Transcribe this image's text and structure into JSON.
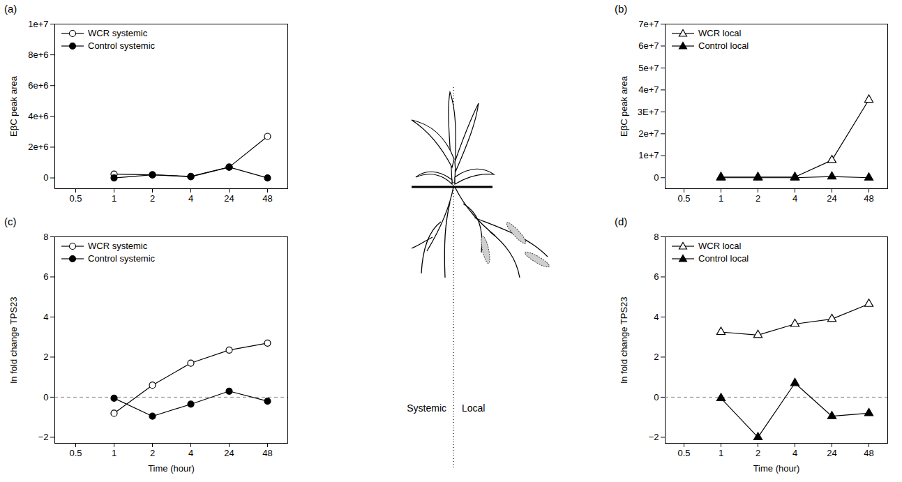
{
  "chart_data": [
    {
      "type": "line",
      "panel_label": "(a)",
      "y_label": "EβC peak area",
      "categories": [
        "0.5",
        "1",
        "2",
        "4",
        "24",
        "48"
      ],
      "ylim": [
        -700000,
        10000000
      ],
      "yticks": [
        0,
        {
          "value": 2000000,
          "label": "2e+6"
        },
        {
          "value": 4000000,
          "label": "4e+6"
        },
        {
          "value": 6000000,
          "label": "6e+6"
        },
        {
          "value": 8000000,
          "label": "8e+6"
        },
        {
          "value": 10000000,
          "label": "1e+7"
        }
      ],
      "legend": "top-left",
      "series": [
        {
          "name": "WCR systemic",
          "color": "#000000",
          "marker": "open-circle",
          "values": [
            null,
            250000,
            200000,
            80000,
            700000,
            2700000
          ]
        },
        {
          "name": "Control systemic",
          "color": "#000000",
          "marker": "filled-circle",
          "values": [
            null,
            0,
            200000,
            100000,
            700000,
            0
          ]
        }
      ]
    },
    {
      "type": "line",
      "panel_label": "(b)",
      "y_label": "EβC peak area",
      "categories": [
        "0.5",
        "1",
        "2",
        "4",
        "24",
        "48"
      ],
      "ylim": [
        -5000000,
        70000000
      ],
      "yticks": [
        0,
        {
          "value": 10000000,
          "label": "1e+7"
        },
        {
          "value": 20000000,
          "label": "2e+7"
        },
        {
          "value": 30000000,
          "label": "3E+7"
        },
        {
          "value": 40000000,
          "label": "4e+7"
        },
        {
          "value": 50000000,
          "label": "5e+7"
        },
        {
          "value": 60000000,
          "label": "6e+7"
        },
        {
          "value": 70000000,
          "label": "7e+7"
        }
      ],
      "legend": "top-left",
      "series": [
        {
          "name": "WCR local",
          "color": "#000000",
          "marker": "open-triangle",
          "values": [
            null,
            300000,
            300000,
            300000,
            8000000,
            35500000
          ]
        },
        {
          "name": "Control local",
          "color": "#000000",
          "marker": "filled-triangle",
          "values": [
            null,
            0,
            0,
            0,
            500000,
            0
          ]
        }
      ]
    },
    {
      "type": "line",
      "panel_label": "(c)",
      "y_label": "ln fold change TPS23",
      "x_label": "Time (hour)",
      "categories": [
        "0.5",
        "1",
        "2",
        "4",
        "24",
        "48"
      ],
      "ylim": [
        -2.3,
        8
      ],
      "yticks": [
        {
          "value": -2,
          "label": "−2"
        },
        0,
        2,
        4,
        6,
        8
      ],
      "reference_line": 0,
      "legend": "top-left",
      "series": [
        {
          "name": "WCR systemic",
          "color": "#000000",
          "marker": "open-circle",
          "values": [
            null,
            -0.8,
            0.6,
            1.7,
            2.35,
            2.7
          ]
        },
        {
          "name": "Control systemic",
          "color": "#000000",
          "marker": "filled-circle",
          "values": [
            null,
            -0.05,
            -0.95,
            -0.35,
            0.3,
            -0.2
          ]
        }
      ]
    },
    {
      "type": "line",
      "panel_label": "(d)",
      "y_label": "ln fold change TPS23",
      "x_label": "Time (hour)",
      "categories": [
        "0.5",
        "1",
        "2",
        "4",
        "24",
        "48"
      ],
      "ylim": [
        -2.3,
        8
      ],
      "yticks": [
        {
          "value": -2,
          "label": "−2"
        },
        0,
        2,
        4,
        6,
        8
      ],
      "reference_line": 0,
      "legend": "top-left",
      "series": [
        {
          "name": "WCR local",
          "color": "#000000",
          "marker": "open-triangle",
          "values": [
            null,
            3.25,
            3.1,
            3.65,
            3.9,
            4.65
          ]
        },
        {
          "name": "Control local",
          "color": "#000000",
          "marker": "filled-triangle",
          "values": [
            null,
            -0.05,
            -2,
            0.7,
            -0.95,
            -0.8
          ]
        }
      ]
    }
  ],
  "diagram": {
    "labels": [
      "Systemic",
      "Local"
    ]
  }
}
